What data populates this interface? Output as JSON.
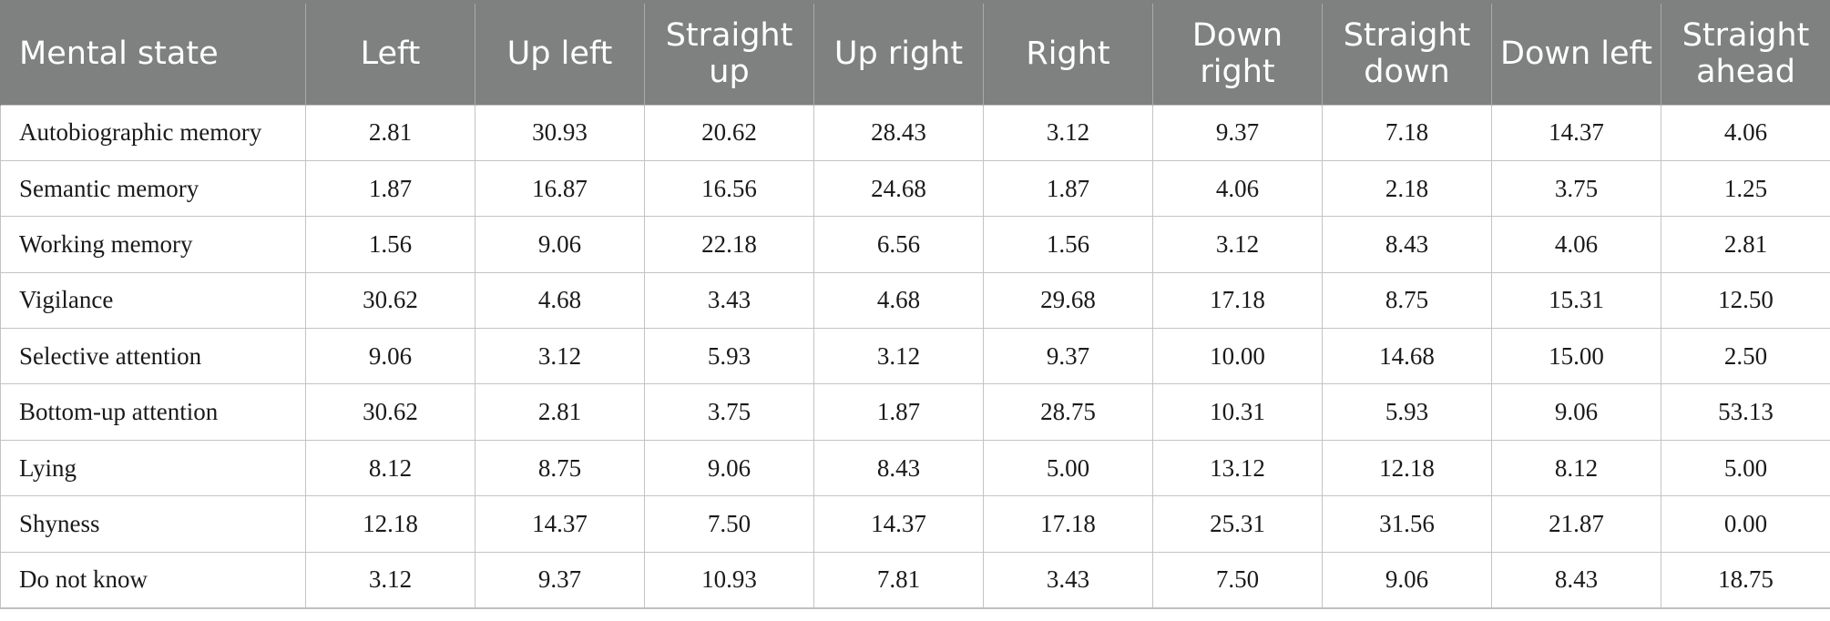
{
  "table": {
    "headers": [
      "Mental state",
      "Left",
      "Up left",
      "Straight up",
      "Up right",
      "Right",
      "Down right",
      "Straight down",
      "Down left",
      "Straight ahead"
    ],
    "rows": [
      {
        "state": "Autobiographic memory",
        "values": [
          "2.81",
          "30.93",
          "20.62",
          "28.43",
          "3.12",
          "9.37",
          "7.18",
          "14.37",
          "4.06"
        ]
      },
      {
        "state": "Semantic memory",
        "values": [
          "1.87",
          "16.87",
          "16.56",
          "24.68",
          "1.87",
          "4.06",
          "2.18",
          "3.75",
          "1.25"
        ]
      },
      {
        "state": "Working memory",
        "values": [
          "1.56",
          "9.06",
          "22.18",
          "6.56",
          "1.56",
          "3.12",
          "8.43",
          "4.06",
          "2.81"
        ]
      },
      {
        "state": "Vigilance",
        "values": [
          "30.62",
          "4.68",
          "3.43",
          "4.68",
          "29.68",
          "17.18",
          "8.75",
          "15.31",
          "12.50"
        ]
      },
      {
        "state": "Selective attention",
        "values": [
          "9.06",
          "3.12",
          "5.93",
          "3.12",
          "9.37",
          "10.00",
          "14.68",
          "15.00",
          "2.50"
        ]
      },
      {
        "state": "Bottom-up attention",
        "values": [
          "30.62",
          "2.81",
          "3.75",
          "1.87",
          "28.75",
          "10.31",
          "5.93",
          "9.06",
          "53.13"
        ]
      },
      {
        "state": "Lying",
        "values": [
          "8.12",
          "8.75",
          "9.06",
          "8.43",
          "5.00",
          "13.12",
          "12.18",
          "8.12",
          "5.00"
        ]
      },
      {
        "state": "Shyness",
        "values": [
          "12.18",
          "14.37",
          "7.50",
          "14.37",
          "17.18",
          "25.31",
          "31.56",
          "21.87",
          "0.00"
        ]
      },
      {
        "state": "Do not know",
        "values": [
          "3.12",
          "9.37",
          "10.93",
          "7.81",
          "3.43",
          "7.50",
          "9.06",
          "8.43",
          "18.75"
        ]
      }
    ]
  },
  "colors": {
    "header_bg": "#7f8180",
    "header_text": "#ffffff",
    "grid": "#c2c4c3"
  }
}
